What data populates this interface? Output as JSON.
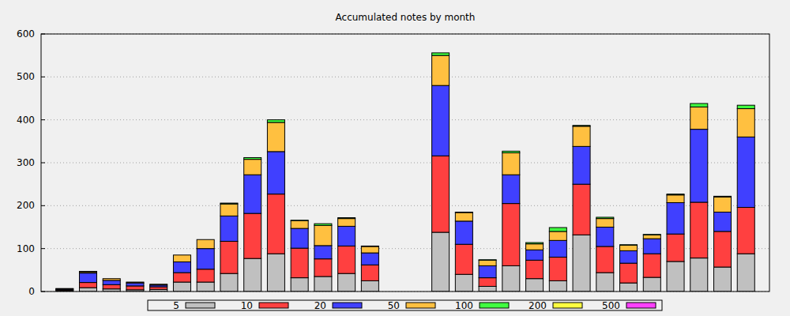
{
  "chart_data": {
    "type": "bar",
    "title": "Accumulated notes by month",
    "stacked": true,
    "grid": true,
    "legend": "bottom",
    "tick_labels": "y",
    "categories": [
      null,
      null,
      null,
      null,
      null,
      null,
      null,
      null,
      null,
      null,
      null,
      null,
      null,
      null,
      null,
      null,
      null,
      null,
      null,
      null,
      null,
      null,
      null,
      null,
      null,
      null,
      null,
      null,
      null,
      null
    ],
    "ylim": [
      0,
      600
    ],
    "yticks": [
      0,
      100,
      200,
      300,
      400,
      500,
      600
    ],
    "series": [
      {
        "name": "5",
        "color": "#c0c0c0",
        "values": [
          2,
          9,
          6,
          4,
          5,
          22,
          22,
          42,
          77,
          88,
          32,
          35,
          42,
          25,
          0,
          0,
          138,
          40,
          12,
          60,
          30,
          25,
          132,
          44,
          20,
          33,
          70,
          78,
          57,
          88
        ]
      },
      {
        "name": "10",
        "color": "#ff4040",
        "values": [
          2,
          12,
          10,
          9,
          6,
          22,
          30,
          75,
          105,
          139,
          69,
          41,
          64,
          37,
          0,
          0,
          178,
          70,
          20,
          145,
          43,
          55,
          118,
          61,
          46,
          55,
          64,
          130,
          83,
          108
        ]
      },
      {
        "name": "20",
        "color": "#4040ff",
        "values": [
          2,
          22,
          10,
          7,
          4,
          25,
          48,
          59,
          90,
          99,
          46,
          31,
          46,
          28,
          0,
          0,
          164,
          54,
          28,
          67,
          24,
          39,
          88,
          45,
          29,
          35,
          73,
          170,
          45,
          164
        ]
      },
      {
        "name": "50",
        "color": "#ffc040",
        "values": [
          1,
          3,
          4,
          2,
          2,
          16,
          21,
          28,
          36,
          68,
          18,
          47,
          18,
          15,
          0,
          0,
          70,
          20,
          13,
          51,
          14,
          21,
          47,
          20,
          13,
          9,
          18,
          52,
          35,
          66
        ]
      },
      {
        "name": "100",
        "color": "#40ff40",
        "values": [
          0,
          1,
          0,
          0,
          0,
          0,
          0,
          2,
          4,
          6,
          1,
          4,
          2,
          1,
          0,
          0,
          6,
          1,
          1,
          4,
          3,
          9,
          2,
          3,
          1,
          1,
          2,
          8,
          2,
          8
        ]
      },
      {
        "name": "200",
        "color": "#ffff40",
        "values": [
          0,
          0,
          0,
          0,
          0,
          0,
          0,
          0,
          0,
          0,
          0,
          0,
          0,
          0,
          0,
          0,
          0,
          0,
          0,
          0,
          0,
          0,
          0,
          0,
          0,
          0,
          0,
          0,
          0,
          0
        ]
      },
      {
        "name": "500",
        "color": "#ff40ff",
        "values": [
          0,
          0,
          0,
          0,
          0,
          0,
          0,
          0,
          0,
          0,
          0,
          0,
          0,
          0,
          0,
          0,
          0,
          0,
          0,
          0,
          0,
          0,
          0,
          0,
          0,
          0,
          0,
          0,
          0,
          0
        ]
      }
    ]
  }
}
